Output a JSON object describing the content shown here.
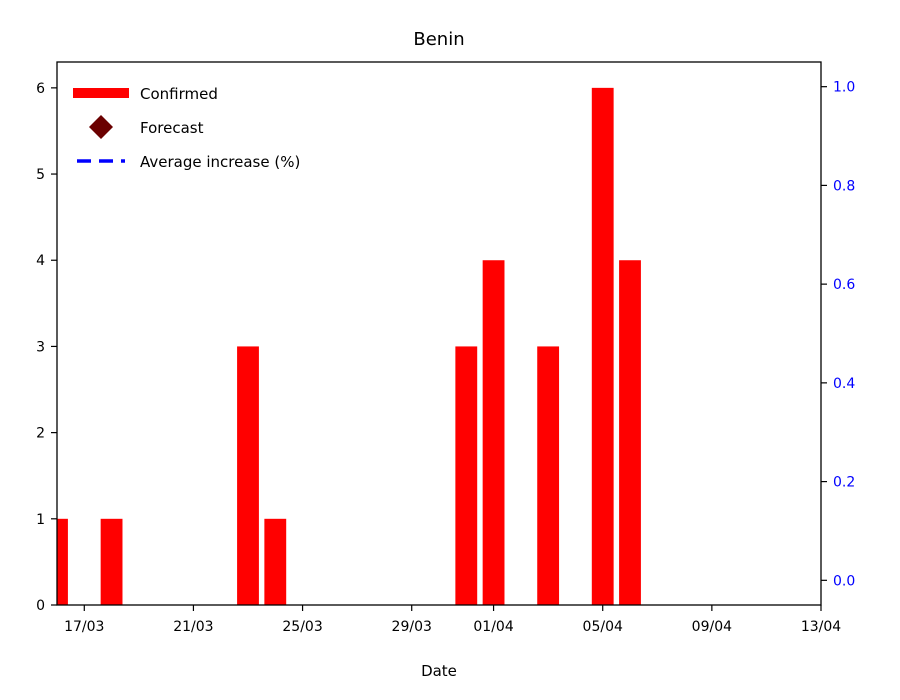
{
  "chart_data": {
    "type": "bar",
    "title": "Benin",
    "xlabel": "Date",
    "ylabel": "",
    "ylabel_right": "",
    "x_ticks": [
      "17/03",
      "21/03",
      "25/03",
      "29/03",
      "01/04",
      "05/04",
      "09/04",
      "13/04"
    ],
    "x_tick_dates": [
      "2020-03-17",
      "2020-03-21",
      "2020-03-25",
      "2020-03-29",
      "2020-04-01",
      "2020-04-05",
      "2020-04-09",
      "2020-04-13"
    ],
    "xlim": [
      "2020-03-16",
      "2020-04-13"
    ],
    "ylim": [
      0,
      6.3
    ],
    "y_ticks": [
      0,
      1,
      2,
      3,
      4,
      5,
      6
    ],
    "ylim_right": [
      -0.05,
      1.05
    ],
    "y_ticks_right": [
      "0.0",
      "0.2",
      "0.4",
      "0.6",
      "0.8",
      "1.0"
    ],
    "right_axis_color": "#0000ff",
    "grid": false,
    "legend_position": "top-left",
    "series": [
      {
        "name": "Confirmed",
        "color": "#ff0000",
        "x": [
          "2020-03-16",
          "2020-03-18",
          "2020-03-23",
          "2020-03-24",
          "2020-03-31",
          "2020-04-01",
          "2020-04-03",
          "2020-04-05",
          "2020-04-06"
        ],
        "values": [
          1,
          1,
          3,
          1,
          3,
          4,
          3,
          6,
          4
        ]
      },
      {
        "name": "Forecast",
        "color": "#6b0000",
        "x": [],
        "values": []
      },
      {
        "name": "Average increase (%)",
        "color": "#0000ff",
        "x": [],
        "values": []
      }
    ]
  }
}
